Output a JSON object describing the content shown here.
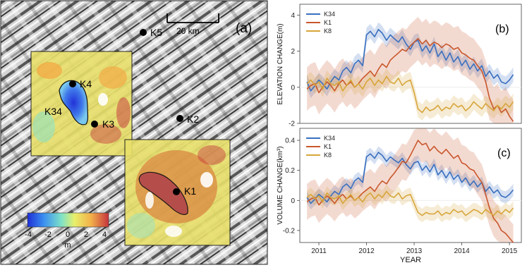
{
  "map_panel": {
    "panel_label": "(a)",
    "scalebar_label": "20 km",
    "sites": [
      "K5",
      "K4",
      "K34",
      "K3",
      "K2",
      "K1"
    ],
    "colorbar": {
      "ticks": [
        "-4",
        "-2",
        "0",
        "2",
        "4"
      ],
      "unit": "m",
      "colors": [
        "#1f2fd6",
        "#3a8ff0",
        "#7fe3c8",
        "#e8ef6a",
        "#f2b24a",
        "#c6343c"
      ]
    }
  },
  "legend": {
    "names": [
      "K34",
      "K1",
      "K8"
    ],
    "colors": [
      "#3a6fbf",
      "#c9572c",
      "#d7a63a"
    ]
  },
  "chart_data": [
    {
      "type": "line",
      "panel_label": "(b)",
      "title": "",
      "xlabel": "",
      "ylabel": "ELEVATION CHANGE(m)",
      "xlim": [
        2010.6,
        2015.25
      ],
      "ylim": [
        -2,
        4.6
      ],
      "yticks": [
        "-2",
        "0",
        "2",
        "4"
      ],
      "xticks": [],
      "x": [
        2010.75,
        2010.83,
        2010.92,
        2011.0,
        2011.08,
        2011.17,
        2011.25,
        2011.33,
        2011.42,
        2011.5,
        2011.58,
        2011.67,
        2011.75,
        2011.83,
        2011.92,
        2012.0,
        2012.08,
        2012.17,
        2012.25,
        2012.33,
        2012.42,
        2012.5,
        2012.58,
        2012.67,
        2012.75,
        2012.83,
        2012.92,
        2013.0,
        2013.08,
        2013.17,
        2013.25,
        2013.33,
        2013.42,
        2013.5,
        2013.58,
        2013.67,
        2013.75,
        2013.83,
        2013.92,
        2014.0,
        2014.08,
        2014.17,
        2014.25,
        2014.33,
        2014.42,
        2014.5,
        2014.58,
        2014.67,
        2014.75,
        2014.83,
        2014.92,
        2015.0,
        2015.08
      ],
      "series": [
        {
          "name": "K34",
          "values": [
            0.3,
            -0.2,
            0.1,
            0.4,
            0.2,
            -0.1,
            0.3,
            0.6,
            0.4,
            0.9,
            1.1,
            0.8,
            1.3,
            1.5,
            1.2,
            2.9,
            3.1,
            2.8,
            3.2,
            3.0,
            2.6,
            2.9,
            2.7,
            2.5,
            2.8,
            2.4,
            2.1,
            2.5,
            2.6,
            2.0,
            2.3,
            1.9,
            2.4,
            1.7,
            2.0,
            1.5,
            1.9,
            1.4,
            1.7,
            1.2,
            1.5,
            1.0,
            1.3,
            0.9,
            1.2,
            0.6,
            0.9,
            0.5,
            0.7,
            0.3,
            0.2,
            0.4,
            0.7
          ],
          "band": 0.4
        },
        {
          "name": "K1",
          "values": [
            -0.1,
            0.1,
            0.2,
            -0.3,
            0.0,
            0.3,
            0.1,
            -0.2,
            0.2,
            0.4,
            0.1,
            0.3,
            0.0,
            0.2,
            0.5,
            0.7,
            0.9,
            0.6,
            1.0,
            1.3,
            1.1,
            1.5,
            1.7,
            1.9,
            2.1,
            2.0,
            2.3,
            2.5,
            2.7,
            2.4,
            2.6,
            2.3,
            2.5,
            2.4,
            2.2,
            2.4,
            2.3,
            2.1,
            2.2,
            1.9,
            1.8,
            1.6,
            1.5,
            1.2,
            0.9,
            0.3,
            -0.6,
            -1.2,
            -1.0,
            -1.4,
            -1.2,
            -1.6,
            -1.9
          ],
          "band": 1.2
        },
        {
          "name": "K8",
          "values": [
            0.2,
            0.4,
            0.1,
            0.3,
            -0.1,
            0.5,
            0.2,
            0.1,
            0.3,
            -0.2,
            0.1,
            0.4,
            0.0,
            0.2,
            -0.1,
            0.3,
            0.5,
            0.1,
            0.4,
            0.2,
            0.6,
            0.3,
            0.2,
            0.5,
            0.1,
            0.3,
            0.4,
            -0.3,
            -1.2,
            -1.4,
            -1.1,
            -1.3,
            -1.2,
            -1.0,
            -1.3,
            -1.1,
            -1.2,
            -0.9,
            -1.1,
            -1.0,
            -1.3,
            -1.1,
            -0.8,
            -1.0,
            -1.2,
            -0.9,
            -1.1,
            -1.3,
            -1.0,
            -1.2,
            -0.9,
            -1.1,
            -0.8
          ],
          "band": 0.45
        }
      ]
    },
    {
      "type": "line",
      "panel_label": "(c)",
      "title": "",
      "xlabel": "YEAR",
      "ylabel": "VOLUME CHANGE(km³)",
      "xlim": [
        2010.6,
        2015.25
      ],
      "ylim": [
        -0.28,
        0.48
      ],
      "yticks": [
        "-0.2",
        "0",
        "0.2",
        "0.4"
      ],
      "xticks": [
        "2011",
        "2012",
        "2013",
        "2014",
        "2015"
      ],
      "x": [
        2010.75,
        2010.83,
        2010.92,
        2011.0,
        2011.08,
        2011.17,
        2011.25,
        2011.33,
        2011.42,
        2011.5,
        2011.58,
        2011.67,
        2011.75,
        2011.83,
        2011.92,
        2012.0,
        2012.08,
        2012.17,
        2012.25,
        2012.33,
        2012.42,
        2012.5,
        2012.58,
        2012.67,
        2012.75,
        2012.83,
        2012.92,
        2013.0,
        2013.08,
        2013.17,
        2013.25,
        2013.33,
        2013.42,
        2013.5,
        2013.58,
        2013.67,
        2013.75,
        2013.83,
        2013.92,
        2014.0,
        2014.08,
        2014.17,
        2014.25,
        2014.33,
        2014.42,
        2014.5,
        2014.58,
        2014.67,
        2014.75,
        2014.83,
        2014.92,
        2015.0,
        2015.08
      ],
      "series": [
        {
          "name": "K34",
          "values": [
            0.02,
            -0.02,
            0.01,
            0.04,
            0.02,
            -0.01,
            0.03,
            0.06,
            0.04,
            0.09,
            0.11,
            0.08,
            0.13,
            0.15,
            0.12,
            0.29,
            0.31,
            0.28,
            0.32,
            0.3,
            0.26,
            0.29,
            0.27,
            0.25,
            0.28,
            0.24,
            0.21,
            0.25,
            0.26,
            0.2,
            0.23,
            0.19,
            0.24,
            0.17,
            0.2,
            0.15,
            0.19,
            0.14,
            0.17,
            0.12,
            0.15,
            0.1,
            0.13,
            0.09,
            0.12,
            0.06,
            0.09,
            0.05,
            0.07,
            0.03,
            0.02,
            0.04,
            0.07
          ],
          "band": 0.04
        },
        {
          "name": "K1",
          "values": [
            -0.01,
            0.01,
            0.02,
            -0.03,
            0.0,
            0.03,
            0.01,
            -0.02,
            0.02,
            0.04,
            0.01,
            0.03,
            0.0,
            0.02,
            0.05,
            0.07,
            0.09,
            0.06,
            0.1,
            0.13,
            0.11,
            0.15,
            0.18,
            0.22,
            0.26,
            0.25,
            0.3,
            0.35,
            0.4,
            0.37,
            0.38,
            0.33,
            0.36,
            0.33,
            0.31,
            0.34,
            0.31,
            0.28,
            0.3,
            0.25,
            0.24,
            0.21,
            0.2,
            0.16,
            0.12,
            0.04,
            -0.05,
            -0.12,
            -0.15,
            -0.2,
            -0.22,
            -0.25,
            -0.28
          ],
          "band": 0.12
        },
        {
          "name": "K8",
          "values": [
            0.02,
            0.04,
            0.01,
            0.03,
            -0.01,
            0.05,
            0.02,
            0.01,
            0.03,
            -0.02,
            0.01,
            0.04,
            0.0,
            0.02,
            -0.01,
            0.03,
            0.05,
            0.01,
            0.04,
            0.02,
            0.06,
            0.03,
            0.02,
            0.05,
            0.01,
            0.03,
            0.04,
            -0.02,
            -0.08,
            -0.1,
            -0.08,
            -0.09,
            -0.09,
            -0.07,
            -0.1,
            -0.08,
            -0.09,
            -0.06,
            -0.08,
            -0.07,
            -0.1,
            -0.08,
            -0.06,
            -0.07,
            -0.09,
            -0.06,
            -0.08,
            -0.1,
            -0.07,
            -0.09,
            -0.06,
            -0.08,
            -0.05
          ],
          "band": 0.045
        }
      ]
    }
  ]
}
